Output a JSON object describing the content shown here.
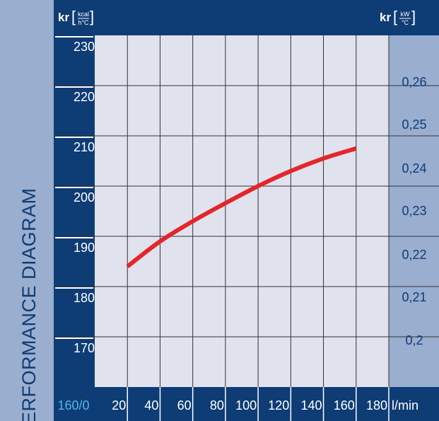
{
  "vertical_title": "PERFORMANCE DIAGRAM",
  "left_unit": {
    "symbol": "kr",
    "num": "kcal",
    "den": "h°C"
  },
  "right_unit": {
    "symbol": "kr",
    "num": "kW",
    "den": "°C"
  },
  "x_unit_label": "l/min",
  "origin_label": "160/0",
  "colors": {
    "navy": "#0e3c74",
    "side_band": "#9aaed0",
    "plot_bg": "#e0e2ee",
    "curve": "#e3262a",
    "origin_text": "#4fb8e8"
  },
  "chart_data": {
    "type": "line",
    "title": "PERFORMANCE DIAGRAM",
    "xlabel": "l/min",
    "ylabel": "kr [kcal/h°C]",
    "y2label": "kr [kW/°C]",
    "x_ticks": [
      "20",
      "40",
      "60",
      "80",
      "100",
      "120",
      "140",
      "160",
      "180"
    ],
    "y_ticks": [
      "230",
      "220",
      "210",
      "200",
      "190",
      "180",
      "170"
    ],
    "y2_ticks": [
      "0,26",
      "0,25",
      "0,24",
      "0,23",
      "0,22",
      "0,21",
      "0,2"
    ],
    "xlim": [
      0,
      180
    ],
    "ylim": [
      160,
      230
    ],
    "grid": true,
    "series": [
      {
        "x": [
          20,
          40,
          60,
          80,
          100,
          120,
          140,
          160
        ],
        "y": [
          184,
          189,
          193,
          196.6,
          200,
          203,
          205.5,
          207.5
        ]
      }
    ]
  }
}
